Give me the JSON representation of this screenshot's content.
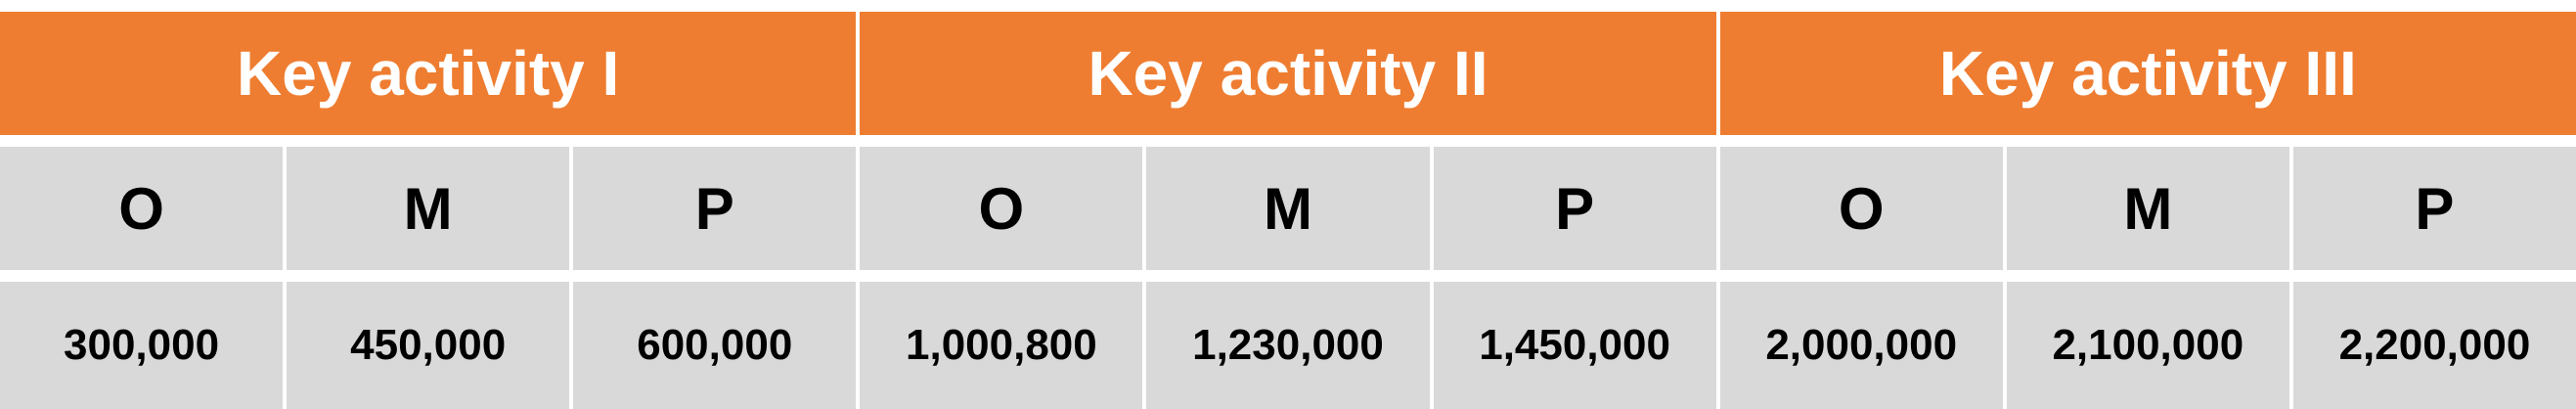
{
  "activities": [
    {
      "title": "Key activity I",
      "columns": [
        "O",
        "M",
        "P"
      ],
      "values": [
        "300,000",
        "450,000",
        "600,000"
      ]
    },
    {
      "title": "Key activity II",
      "columns": [
        "O",
        "M",
        "P"
      ],
      "values": [
        "1,000,800",
        "1,230,000",
        "1,450,000"
      ]
    },
    {
      "title": "Key activity III",
      "columns": [
        "O",
        "M",
        "P"
      ],
      "values": [
        "2,000,000",
        "2,100,000",
        "2,200,000"
      ]
    }
  ],
  "colors": {
    "header": "#ee7d31",
    "cell": "#d9d9d9"
  }
}
